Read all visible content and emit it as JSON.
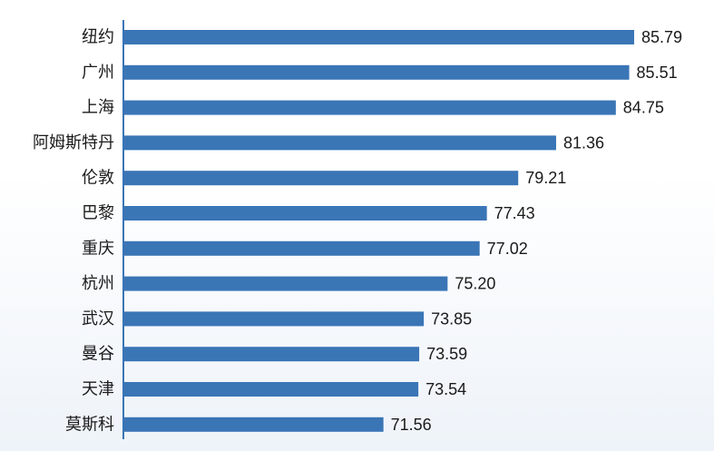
{
  "colors": {
    "bar": "#3a75b6",
    "axis": "#3a75b6",
    "text": "#1a1a1a"
  },
  "chart_data": {
    "type": "bar",
    "orientation": "horizontal",
    "categories": [
      "纽约",
      "广州",
      "上海",
      "阿姆斯特丹",
      "伦敦",
      "巴黎",
      "重庆",
      "杭州",
      "武汉",
      "曼谷",
      "天津",
      "莫斯科"
    ],
    "values": [
      85.79,
      85.51,
      84.75,
      81.36,
      79.21,
      77.43,
      77.02,
      75.2,
      73.85,
      73.59,
      73.54,
      71.56
    ],
    "value_labels": [
      "85.79",
      "85.51",
      "84.75",
      "81.36",
      "79.21",
      "77.43",
      "77.02",
      "75.20",
      "73.85",
      "73.59",
      "73.54",
      "71.56"
    ],
    "title": "",
    "xlabel": "",
    "ylabel": "",
    "xlim": [
      56.8,
      85.79
    ],
    "grid": false,
    "legend": "none"
  }
}
